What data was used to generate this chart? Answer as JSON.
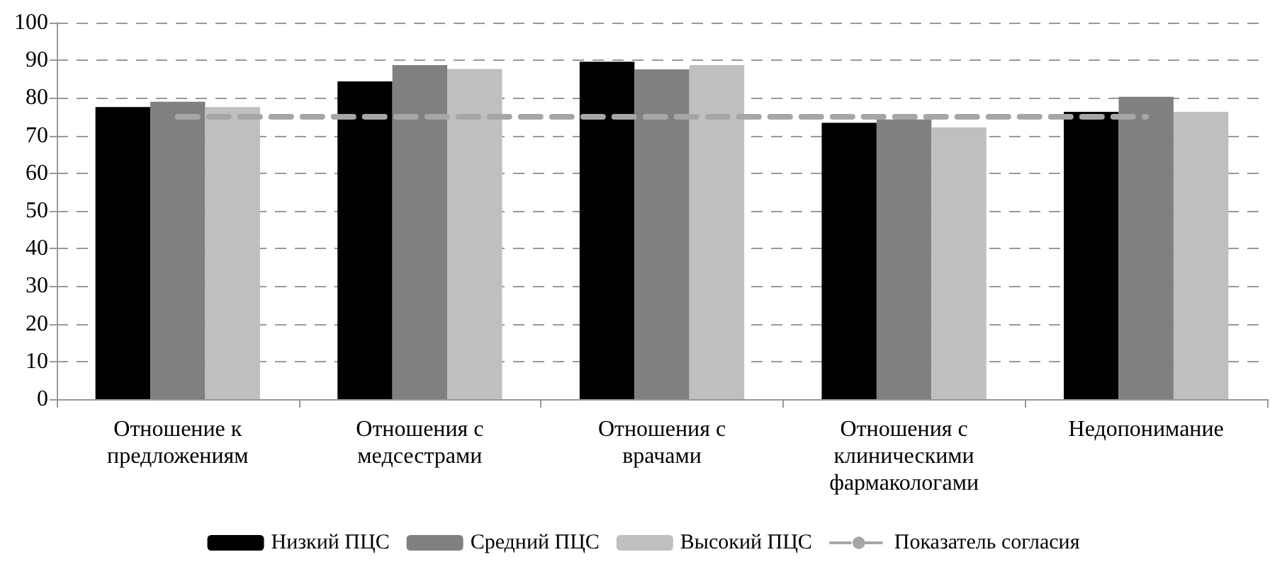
{
  "chart_data": {
    "type": "bar",
    "categories": [
      "Отношение к предложениям",
      "Отношения с медсестрами",
      "Отношения с врачами",
      "Отношения с клиническими фармакологами",
      "Недопонимание"
    ],
    "series": [
      {
        "name": "Низкий ПЦС",
        "color": "#000000",
        "values": [
          77.6,
          84.4,
          89.6,
          73.4,
          76.3
        ]
      },
      {
        "name": "Средний ПЦС",
        "color": "#808080",
        "values": [
          79,
          88.7,
          87.6,
          74.3,
          80.3
        ]
      },
      {
        "name": "Высокий ПЦС",
        "color": "#bfbfbf",
        "values": [
          77.6,
          87.7,
          88.7,
          72.2,
          76.3
        ]
      },
      {
        "name": "Показатель согласия",
        "type": "line",
        "color": "#a6a6a6",
        "line_style": "dashed",
        "marker": "none",
        "values": [
          75,
          75,
          75,
          75,
          75
        ]
      }
    ],
    "ylim": [
      0,
      100
    ],
    "yticks": [
      0,
      10,
      20,
      30,
      40,
      50,
      60,
      70,
      80,
      90,
      100
    ],
    "grid": "y",
    "legend": "bottom"
  }
}
